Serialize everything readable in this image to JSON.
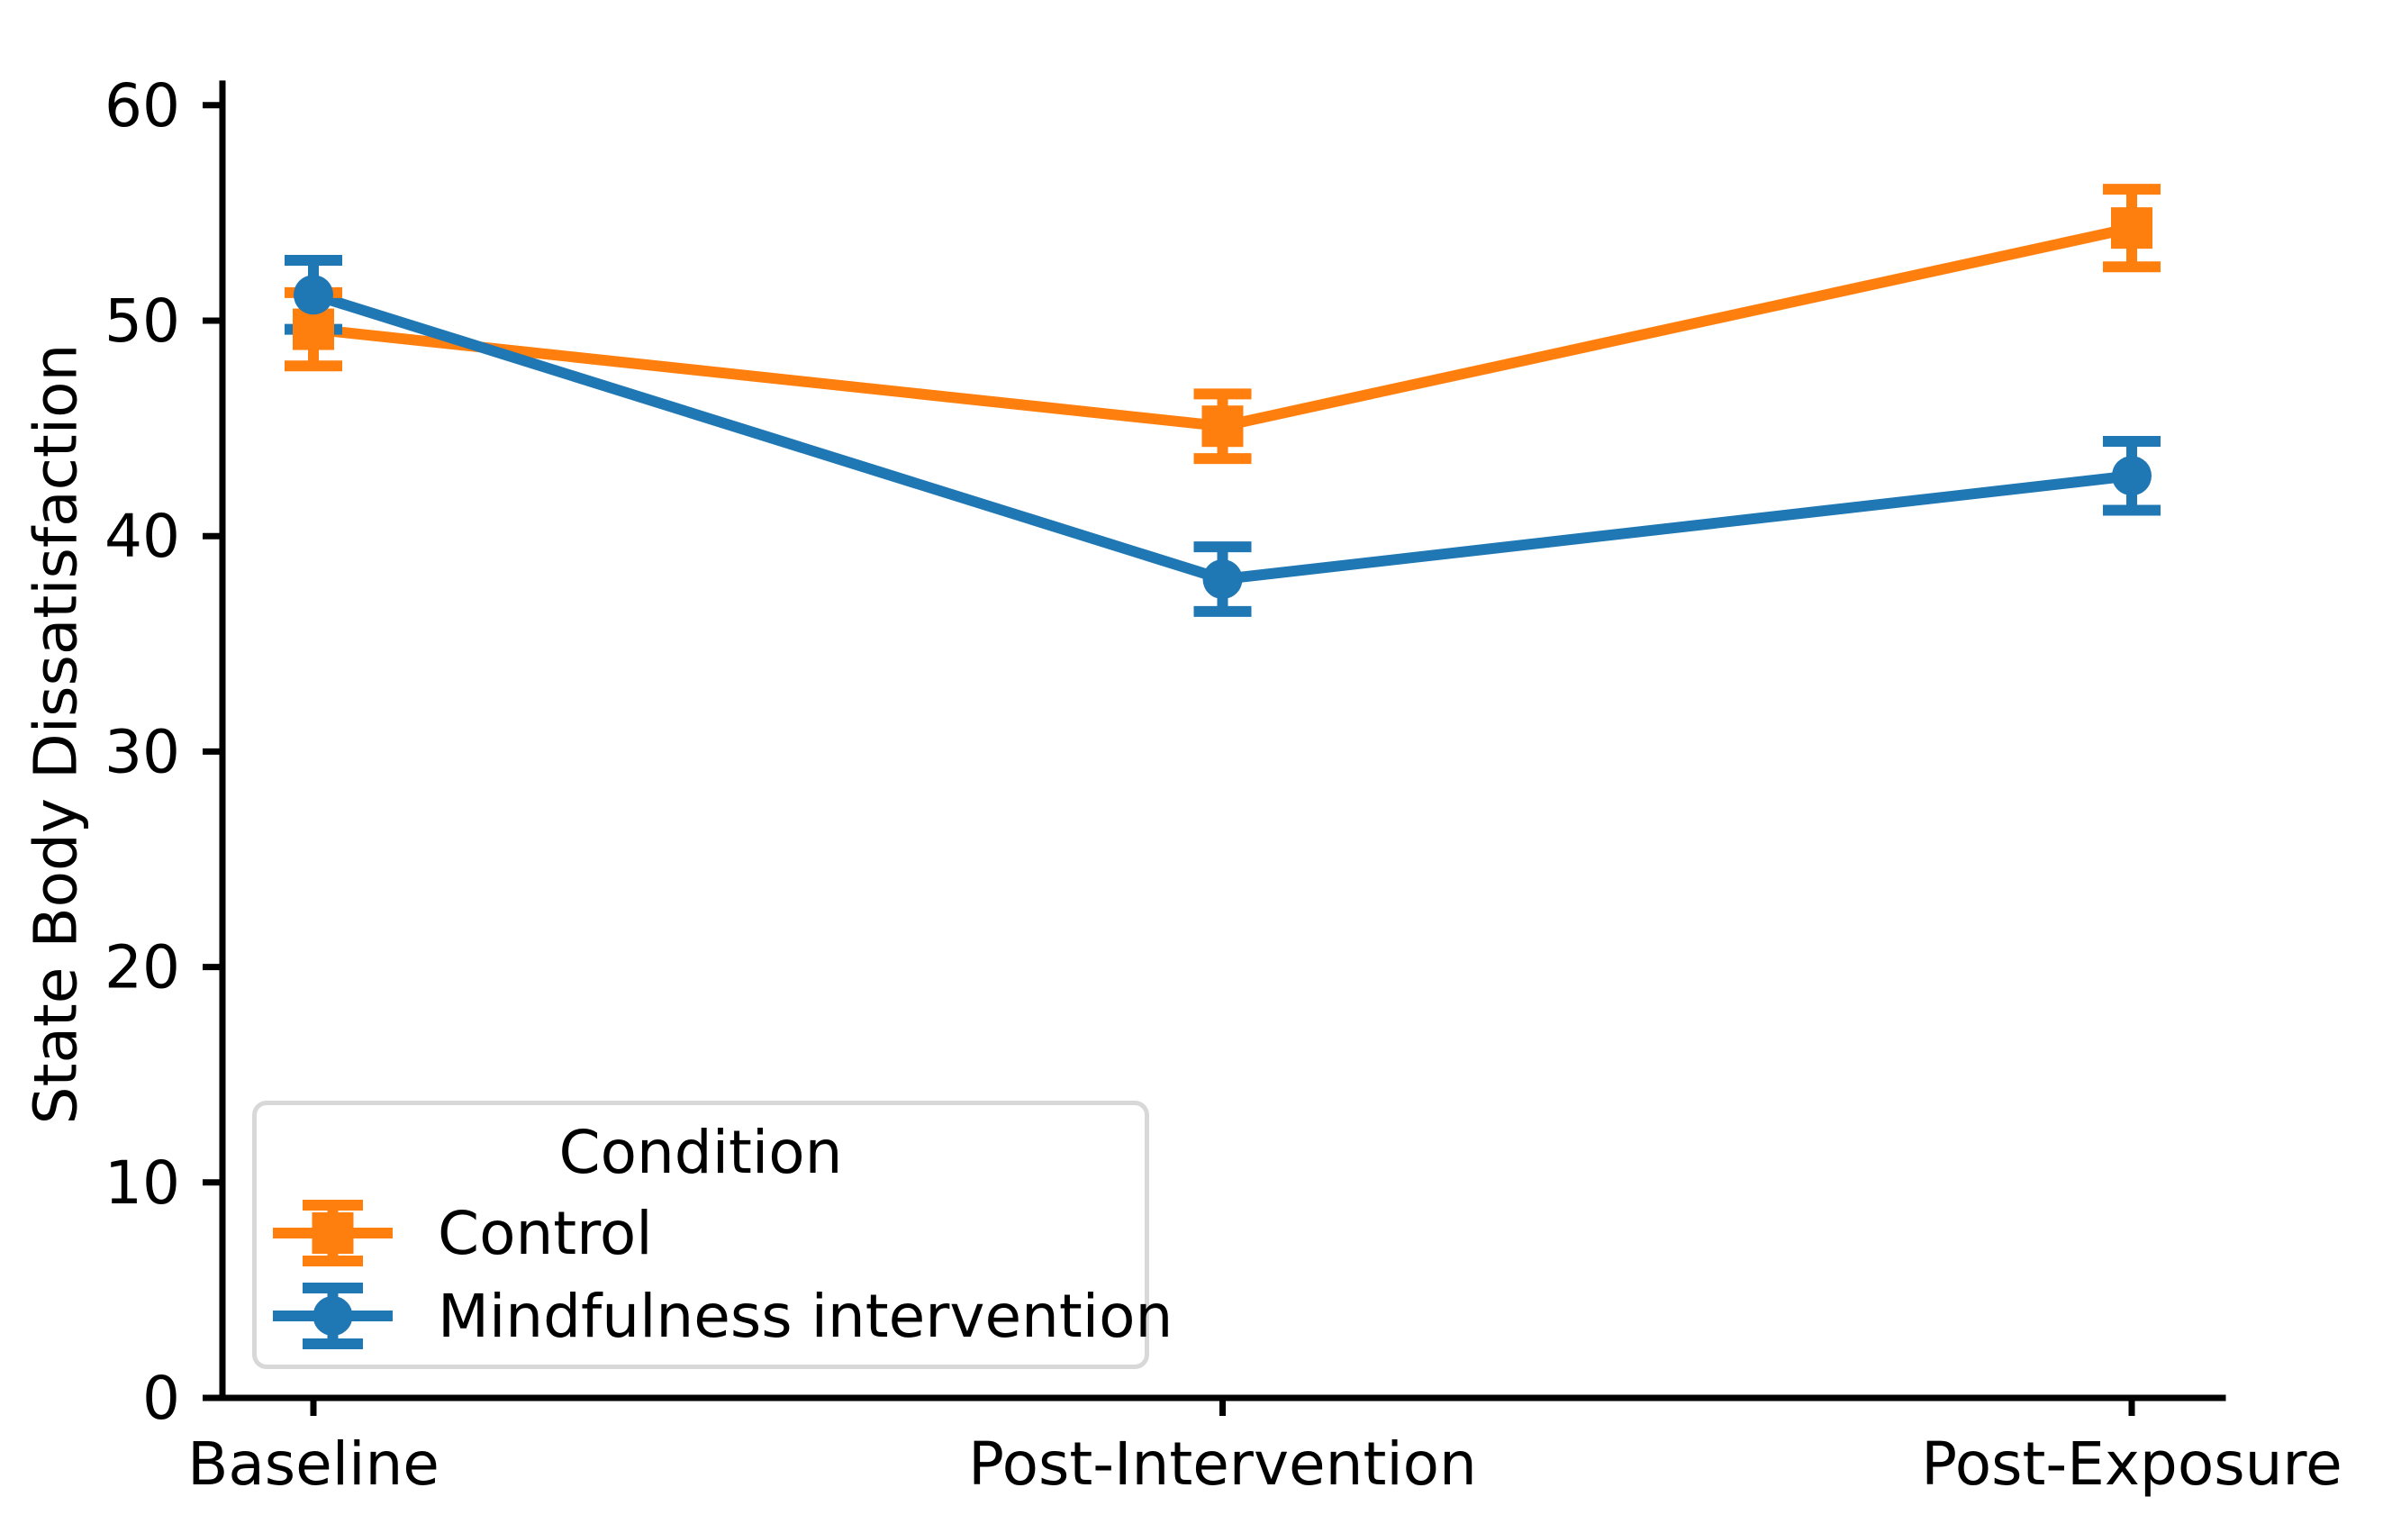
{
  "figure": {
    "background": "#ffffff"
  },
  "chart_data": {
    "type": "line",
    "title": "",
    "xlabel": "",
    "ylabel": "State Body Dissatisfaction",
    "categories": [
      "Baseline",
      "Post-Intervention",
      "Post-Exposure"
    ],
    "series": [
      {
        "name": "Control",
        "marker": "square",
        "color": "#ff7f0e",
        "values": [
          49.6,
          45.1,
          54.3
        ],
        "errors": [
          1.7,
          1.5,
          1.8
        ]
      },
      {
        "name": "Mindfulness intervention",
        "marker": "circle",
        "color": "#1f77b4",
        "values": [
          51.2,
          38.0,
          42.8
        ],
        "errors": [
          1.6,
          1.5,
          1.6
        ]
      }
    ],
    "ylim": [
      0,
      61
    ],
    "y_ticks": [
      0,
      10,
      20,
      30,
      40,
      50,
      60
    ],
    "grid": false,
    "error_bars": "caps",
    "legend_title": "Condition",
    "legend_position": "lower-left"
  },
  "legend": {
    "title": "Condition",
    "entries": [
      {
        "label": "Control",
        "color": "#ff7f0e",
        "marker": "square"
      },
      {
        "label": "Mindfulness intervention",
        "color": "#1f77b4",
        "marker": "circle"
      }
    ]
  }
}
